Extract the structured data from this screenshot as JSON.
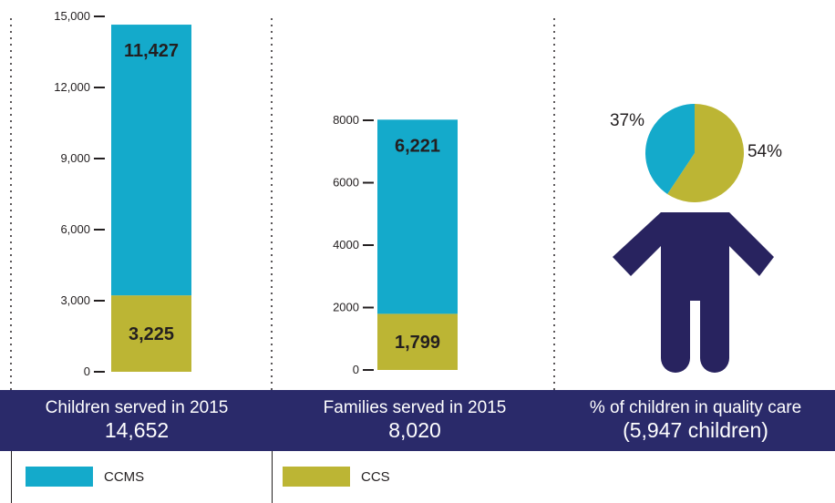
{
  "colors": {
    "ccms": "#14aacb",
    "ccs": "#bcb534",
    "navy": "#2a2a6a",
    "figure": "#28235f"
  },
  "chart_data": [
    {
      "type": "bar",
      "stacked": true,
      "categories": [
        "Children served in 2015"
      ],
      "series": [
        {
          "name": "CCS",
          "values": [
            3225
          ]
        },
        {
          "name": "CCMS",
          "values": [
            11427
          ]
        }
      ],
      "data_labels": [
        "3,225",
        "11,427"
      ],
      "yticks": [
        "0",
        "3,000",
        "6,000",
        "9,000",
        "12,000",
        "15,000"
      ],
      "ytick_values": [
        0,
        3000,
        6000,
        9000,
        12000,
        15000
      ],
      "ylim": [
        0,
        15000
      ],
      "footer_title": "Children served in 2015",
      "footer_value": "14,652"
    },
    {
      "type": "bar",
      "stacked": true,
      "categories": [
        "Families served in 2015"
      ],
      "series": [
        {
          "name": "CCS",
          "values": [
            1799
          ]
        },
        {
          "name": "CCMS",
          "values": [
            6221
          ]
        }
      ],
      "data_labels": [
        "1,799",
        "6,221"
      ],
      "yticks": [
        "0",
        "2000",
        "4000",
        "6000",
        "8000"
      ],
      "ytick_values": [
        0,
        2000,
        4000,
        6000,
        8000
      ],
      "ylim": [
        0,
        8000
      ],
      "footer_title": "Families served in 2015",
      "footer_value": "8,020"
    },
    {
      "type": "pie",
      "slices": [
        {
          "name": "CCMS",
          "value": 37,
          "label": "37%"
        },
        {
          "name": "CCS",
          "value": 54,
          "label": "54%"
        }
      ],
      "footer_title": "% of children in quality care",
      "footer_value": "(5,947 children)"
    }
  ],
  "legend": [
    {
      "name": "CCMS",
      "color": "#14aacb"
    },
    {
      "name": "CCS",
      "color": "#bcb534"
    }
  ]
}
